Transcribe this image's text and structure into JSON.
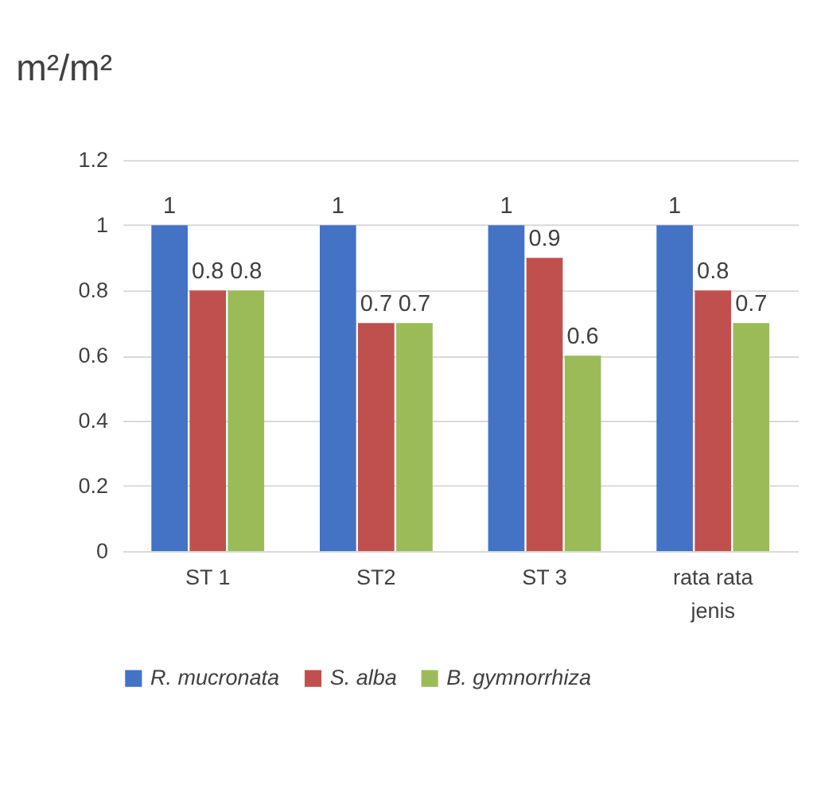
{
  "chart_data": {
    "type": "bar",
    "title": "m²/m²",
    "categories": [
      "ST 1",
      "ST2",
      "ST 3",
      "rata rata jenis"
    ],
    "series": [
      {
        "name": "R. mucronata",
        "color": "#4472c4",
        "values": [
          1,
          1,
          1,
          1
        ]
      },
      {
        "name": "S. alba",
        "color": "#c0504d",
        "values": [
          0.8,
          0.7,
          0.9,
          0.8
        ]
      },
      {
        "name": "B. gymnorrhiza",
        "color": "#9bbb59",
        "values": [
          0.8,
          0.7,
          0.6,
          0.7
        ]
      }
    ],
    "ylim": [
      0,
      1.2
    ],
    "yticks": [
      0,
      0.2,
      0.4,
      0.6,
      0.8,
      1,
      1.2
    ],
    "grid": "y",
    "legend": "bottom",
    "data_labels": true
  }
}
